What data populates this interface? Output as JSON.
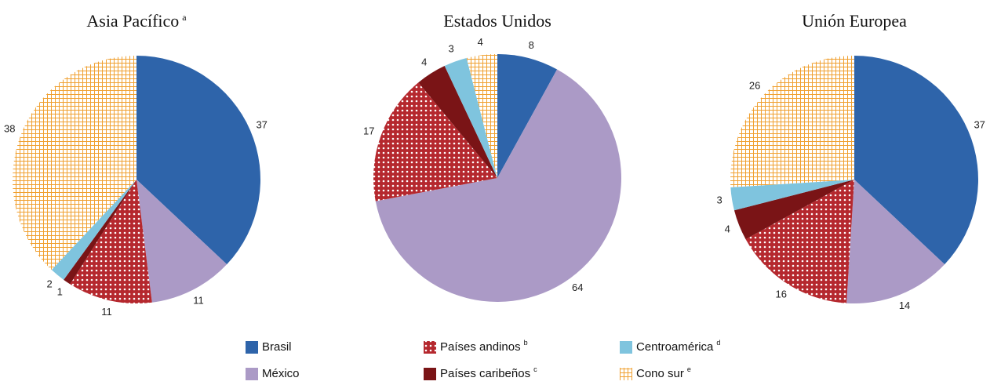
{
  "legend": [
    {
      "name": "Brasil",
      "color": "#2e64aa"
    },
    {
      "name": "México",
      "color": "#ab9ac6"
    },
    {
      "name": "Países andinos",
      "note": "b",
      "color": "#b5282e",
      "pattern": "dots"
    },
    {
      "name": "Países caribeños",
      "note": "c",
      "color": "#7a1416"
    },
    {
      "name": "Centroamérica",
      "note": "d",
      "color": "#7fc4de"
    },
    {
      "name": "Cono sur",
      "note": "e",
      "color": "#f0a030",
      "pattern": "grid"
    }
  ],
  "chart_data": [
    {
      "type": "pie",
      "title": "Asia Pacífico",
      "title_note": "a",
      "values": [
        37,
        11,
        11,
        1,
        2,
        38
      ]
    },
    {
      "type": "pie",
      "title": "Estados Unidos",
      "values": [
        8,
        64,
        17,
        4,
        3,
        4
      ]
    },
    {
      "type": "pie",
      "title": "Unión Europea",
      "values": [
        37,
        14,
        16,
        4,
        3,
        26
      ]
    }
  ]
}
